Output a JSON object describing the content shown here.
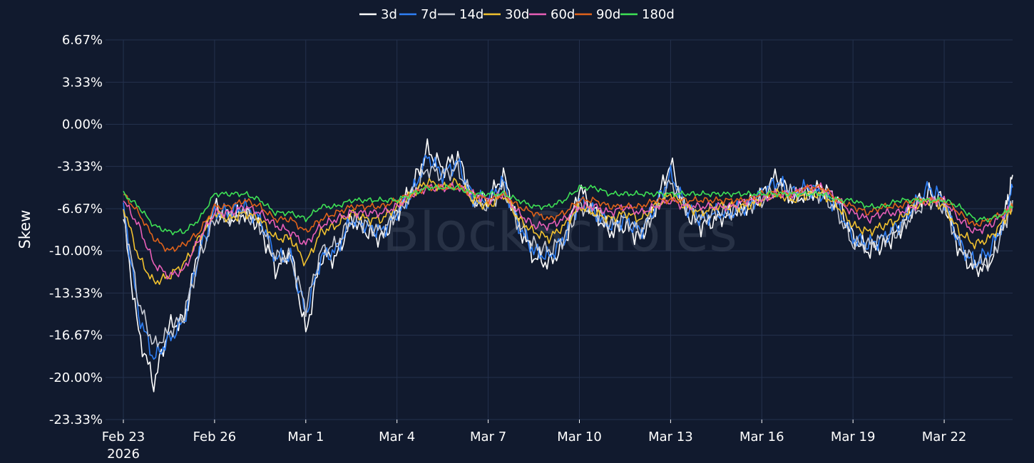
{
  "chart_data": {
    "type": "line",
    "watermark": "BlockScholes",
    "ylabel": "Skew",
    "y_ticks": [
      "6.67%",
      "3.33%",
      "0.00%",
      "-3.33%",
      "-6.67%",
      "-10.00%",
      "-13.33%",
      "-16.67%",
      "-20.00%",
      "-23.33%"
    ],
    "ylim": [
      -23.33,
      6.67
    ],
    "x_ticks": [
      {
        "date": "2026-02-23",
        "label": "Feb 23",
        "sublabel": "2026"
      },
      {
        "date": "2026-02-26",
        "label": "Feb 26",
        "sublabel": ""
      },
      {
        "date": "2026-03-01",
        "label": "Mar 1",
        "sublabel": ""
      },
      {
        "date": "2026-03-04",
        "label": "Mar 4",
        "sublabel": ""
      },
      {
        "date": "2026-03-07",
        "label": "Mar 7",
        "sublabel": ""
      },
      {
        "date": "2026-03-10",
        "label": "Mar 10",
        "sublabel": ""
      },
      {
        "date": "2026-03-13",
        "label": "Mar 13",
        "sublabel": ""
      },
      {
        "date": "2026-03-16",
        "label": "Mar 16",
        "sublabel": ""
      },
      {
        "date": "2026-03-19",
        "label": "Mar 19",
        "sublabel": ""
      },
      {
        "date": "2026-03-22",
        "label": "Mar 22",
        "sublabel": ""
      }
    ],
    "xlim": [
      "2026-02-23T00:00",
      "2026-03-24T06:00"
    ],
    "grid": true,
    "legend_position": "top-center",
    "x": [
      "2026-02-23T00:00",
      "2026-02-23T12:00",
      "2026-02-24T00:00",
      "2026-02-24T12:00",
      "2026-02-25T00:00",
      "2026-02-25T12:00",
      "2026-02-26T00:00",
      "2026-02-26T12:00",
      "2026-02-27T00:00",
      "2026-02-27T12:00",
      "2026-02-28T00:00",
      "2026-02-28T12:00",
      "2026-03-01T00:00",
      "2026-03-01T12:00",
      "2026-03-02T00:00",
      "2026-03-02T12:00",
      "2026-03-03T00:00",
      "2026-03-03T12:00",
      "2026-03-04T00:00",
      "2026-03-04T12:00",
      "2026-03-05T00:00",
      "2026-03-05T12:00",
      "2026-03-06T00:00",
      "2026-03-06T12:00",
      "2026-03-07T00:00",
      "2026-03-07T12:00",
      "2026-03-08T00:00",
      "2026-03-08T12:00",
      "2026-03-09T00:00",
      "2026-03-09T12:00",
      "2026-03-10T00:00",
      "2026-03-10T12:00",
      "2026-03-11T00:00",
      "2026-03-11T12:00",
      "2026-03-12T00:00",
      "2026-03-12T12:00",
      "2026-03-13T00:00",
      "2026-03-13T12:00",
      "2026-03-14T00:00",
      "2026-03-14T12:00",
      "2026-03-15T00:00",
      "2026-03-15T12:00",
      "2026-03-16T00:00",
      "2026-03-16T12:00",
      "2026-03-17T00:00",
      "2026-03-17T12:00",
      "2026-03-18T00:00",
      "2026-03-18T12:00",
      "2026-03-19T00:00",
      "2026-03-19T12:00",
      "2026-03-20T00:00",
      "2026-03-20T12:00",
      "2026-03-21T00:00",
      "2026-03-21T12:00",
      "2026-03-22T00:00",
      "2026-03-22T12:00",
      "2026-03-23T00:00",
      "2026-03-23T12:00",
      "2026-03-24T00:00",
      "2026-03-24T06:00"
    ],
    "series": [
      {
        "name": "3d",
        "color": "#ffffff",
        "values": [
          -7.5,
          -16.5,
          -20.5,
          -16.0,
          -15.5,
          -9.5,
          -6.5,
          -7.5,
          -7.0,
          -8.0,
          -11.5,
          -10.0,
          -16.5,
          -10.5,
          -10.5,
          -7.5,
          -8.5,
          -9.0,
          -7.0,
          -5.0,
          -2.0,
          -3.5,
          -2.5,
          -6.0,
          -6.0,
          -4.0,
          -8.0,
          -10.5,
          -11.0,
          -9.5,
          -5.0,
          -7.0,
          -8.5,
          -8.0,
          -9.0,
          -6.5,
          -3.0,
          -7.0,
          -8.0,
          -7.5,
          -7.0,
          -6.5,
          -5.5,
          -4.0,
          -6.0,
          -5.5,
          -5.0,
          -6.0,
          -9.0,
          -10.0,
          -9.5,
          -8.5,
          -6.5,
          -5.5,
          -6.0,
          -10.0,
          -11.5,
          -11.0,
          -7.0,
          -4.0
        ]
      },
      {
        "name": "7d",
        "color": "#2f7ff5",
        "values": [
          -6.5,
          -15.0,
          -18.5,
          -17.0,
          -15.5,
          -10.0,
          -7.0,
          -7.0,
          -6.5,
          -7.5,
          -10.5,
          -10.5,
          -15.0,
          -10.5,
          -10.0,
          -7.5,
          -8.0,
          -8.5,
          -7.0,
          -5.5,
          -2.5,
          -4.0,
          -3.0,
          -6.0,
          -6.0,
          -4.5,
          -8.0,
          -10.0,
          -10.5,
          -9.0,
          -6.0,
          -7.0,
          -8.0,
          -7.5,
          -8.5,
          -6.5,
          -4.0,
          -6.5,
          -7.5,
          -7.0,
          -7.0,
          -6.5,
          -5.5,
          -4.5,
          -5.5,
          -5.0,
          -5.5,
          -6.5,
          -9.0,
          -9.5,
          -9.0,
          -8.0,
          -6.5,
          -5.0,
          -6.0,
          -9.5,
          -11.0,
          -10.0,
          -7.5,
          -5.0
        ]
      },
      {
        "name": "14d",
        "color": "#c6c9d2",
        "values": [
          -7.0,
          -14.0,
          -17.5,
          -16.5,
          -15.0,
          -10.5,
          -7.5,
          -7.5,
          -7.0,
          -8.0,
          -10.5,
          -10.5,
          -14.5,
          -10.0,
          -9.5,
          -7.5,
          -8.0,
          -8.5,
          -7.0,
          -5.5,
          -3.5,
          -4.0,
          -3.5,
          -6.0,
          -6.5,
          -5.0,
          -8.0,
          -9.5,
          -10.0,
          -9.0,
          -6.5,
          -7.0,
          -8.0,
          -7.5,
          -8.5,
          -7.0,
          -4.5,
          -6.5,
          -7.5,
          -7.0,
          -7.0,
          -6.5,
          -6.0,
          -5.0,
          -5.5,
          -5.5,
          -5.5,
          -7.0,
          -9.5,
          -9.5,
          -9.0,
          -8.5,
          -7.0,
          -6.0,
          -6.5,
          -9.5,
          -11.0,
          -11.0,
          -8.0,
          -6.0
        ]
      },
      {
        "name": "30d",
        "color": "#f2c22e",
        "values": [
          -6.5,
          -10.5,
          -12.5,
          -12.0,
          -11.0,
          -9.0,
          -7.0,
          -7.5,
          -7.0,
          -7.5,
          -9.0,
          -9.0,
          -11.0,
          -8.5,
          -8.0,
          -7.0,
          -7.5,
          -7.5,
          -6.5,
          -5.5,
          -4.5,
          -5.0,
          -4.5,
          -6.0,
          -6.5,
          -5.5,
          -7.5,
          -8.5,
          -9.0,
          -8.0,
          -6.5,
          -7.0,
          -7.5,
          -7.0,
          -7.5,
          -6.5,
          -5.5,
          -6.5,
          -7.0,
          -6.5,
          -6.5,
          -6.5,
          -6.0,
          -5.5,
          -6.0,
          -5.5,
          -5.5,
          -6.5,
          -8.0,
          -8.5,
          -8.0,
          -7.5,
          -6.5,
          -6.0,
          -6.5,
          -8.5,
          -9.5,
          -9.0,
          -7.5,
          -6.5
        ]
      },
      {
        "name": "60d",
        "color": "#e85fb8",
        "values": [
          -6.0,
          -8.0,
          -11.0,
          -12.0,
          -11.5,
          -9.0,
          -7.0,
          -7.0,
          -6.5,
          -7.0,
          -8.0,
          -8.5,
          -9.5,
          -8.0,
          -7.5,
          -7.0,
          -7.0,
          -7.0,
          -6.5,
          -5.5,
          -5.0,
          -5.0,
          -5.0,
          -5.5,
          -6.0,
          -5.5,
          -7.0,
          -8.0,
          -8.0,
          -7.5,
          -6.5,
          -6.5,
          -7.0,
          -6.5,
          -7.0,
          -6.5,
          -6.0,
          -6.5,
          -6.5,
          -6.5,
          -6.5,
          -6.0,
          -6.0,
          -5.5,
          -5.5,
          -5.0,
          -5.0,
          -6.0,
          -7.0,
          -7.5,
          -7.0,
          -7.0,
          -6.5,
          -6.0,
          -6.0,
          -7.5,
          -8.5,
          -8.0,
          -7.0,
          -6.5
        ]
      },
      {
        "name": "90d",
        "color": "#e0621a",
        "values": [
          -5.5,
          -7.0,
          -9.0,
          -10.0,
          -9.5,
          -8.5,
          -6.5,
          -6.5,
          -6.0,
          -6.5,
          -7.5,
          -7.5,
          -8.5,
          -7.5,
          -7.0,
          -6.5,
          -6.5,
          -6.5,
          -6.0,
          -5.5,
          -5.0,
          -5.0,
          -5.0,
          -5.5,
          -6.0,
          -5.5,
          -6.5,
          -7.0,
          -7.5,
          -7.0,
          -6.0,
          -6.0,
          -6.5,
          -6.5,
          -6.5,
          -6.0,
          -6.0,
          -6.0,
          -6.0,
          -6.0,
          -6.0,
          -6.0,
          -5.5,
          -5.5,
          -5.5,
          -5.0,
          -5.0,
          -6.0,
          -6.5,
          -7.0,
          -6.5,
          -6.5,
          -6.0,
          -6.0,
          -6.0,
          -7.0,
          -8.0,
          -7.5,
          -7.0,
          -6.5
        ]
      },
      {
        "name": "180d",
        "color": "#3ee255",
        "values": [
          -5.5,
          -6.5,
          -8.0,
          -8.5,
          -8.5,
          -7.5,
          -5.5,
          -5.5,
          -5.5,
          -6.0,
          -7.0,
          -7.0,
          -7.5,
          -6.5,
          -6.5,
          -6.0,
          -6.0,
          -6.0,
          -6.0,
          -5.5,
          -5.0,
          -5.0,
          -5.0,
          -5.5,
          -5.5,
          -5.5,
          -6.0,
          -6.5,
          -6.5,
          -6.0,
          -5.0,
          -5.0,
          -5.5,
          -5.5,
          -5.5,
          -5.5,
          -5.5,
          -5.5,
          -5.5,
          -5.5,
          -5.5,
          -5.5,
          -5.5,
          -5.5,
          -5.5,
          -5.5,
          -5.5,
          -6.0,
          -6.0,
          -6.5,
          -6.5,
          -6.0,
          -6.0,
          -6.0,
          -6.0,
          -6.5,
          -7.5,
          -7.5,
          -7.0,
          -6.5
        ]
      }
    ]
  }
}
